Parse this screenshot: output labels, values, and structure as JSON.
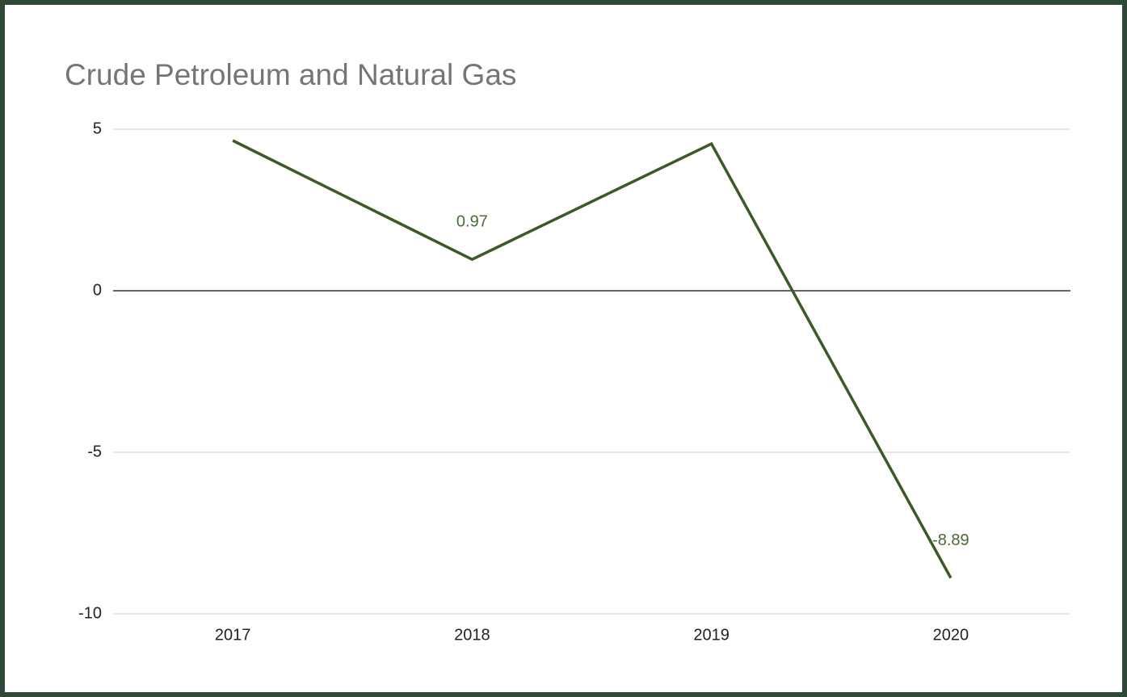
{
  "chart_data": {
    "type": "line",
    "title": "Crude Petroleum and Natural Gas",
    "categories": [
      "2017",
      "2018",
      "2019",
      "2020"
    ],
    "series": [
      {
        "name": "Crude Petroleum and Natural Gas",
        "color": "#3b5a27",
        "values": [
          4.65,
          0.97,
          4.55,
          -8.89
        ],
        "value_labels": [
          null,
          "0.97",
          null,
          "-8.89"
        ]
      }
    ],
    "ylim": [
      -10,
      5
    ],
    "yticks": [
      -10,
      -5,
      0,
      5
    ],
    "grid": true
  }
}
